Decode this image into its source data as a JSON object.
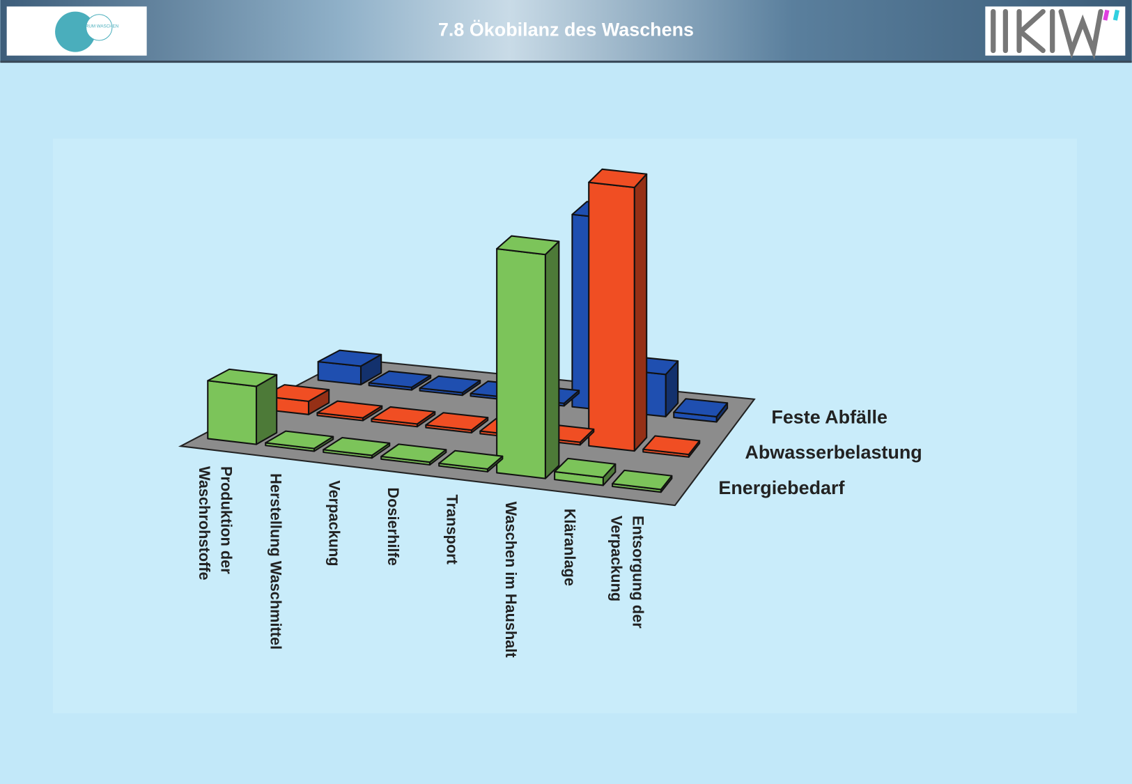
{
  "header": {
    "logo_left": "FORUM WASCHEN"
  },
  "chart_data": {
    "type": "bar3d",
    "title": "7.8 Ökobilanz des Waschens",
    "categories": [
      "Produktion der\nWaschrohstoffe",
      "Herstellung Waschmittel",
      "Verpackung",
      "Dosierhilfe",
      "Transport",
      "Waschen im Haushalt",
      "Kläranlage",
      "Entsorgung der\nVerpackung"
    ],
    "series": [
      {
        "name": "Energiebedarf",
        "color": "#7cc45a",
        "values": [
          22,
          1,
          1,
          1,
          1,
          85,
          3,
          1
        ]
      },
      {
        "name": "Abwasserbelastung",
        "color": "#f04e23",
        "values": [
          5,
          1,
          1,
          1,
          1,
          1,
          100,
          1
        ]
      },
      {
        "name": "Feste Abfälle",
        "color": "#1f4fb0",
        "values": [
          7,
          1,
          1,
          1,
          1,
          73,
          16,
          2
        ]
      }
    ]
  }
}
